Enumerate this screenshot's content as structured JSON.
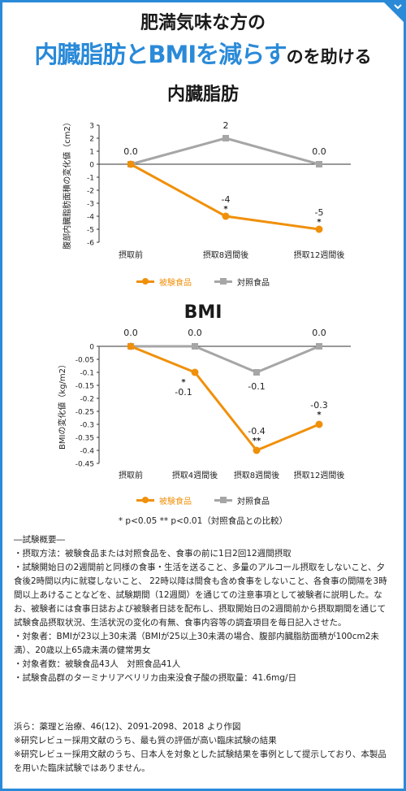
{
  "headline": {
    "line1": "肥満気味な方の",
    "line2_big": "内臓脂肪とBMIを減らす",
    "line2_small": "のを助ける"
  },
  "chart_data": [
    {
      "type": "line",
      "title": "内臓脂肪",
      "ylabel": "腹部内臓脂肪面積の変化値（cm2）",
      "xlabel": "",
      "categories": [
        "摂取前",
        "摂取8週間後",
        "摂取12週間後"
      ],
      "ylim": [
        -6,
        3
      ],
      "yticks": [
        3,
        2,
        1,
        0,
        -1,
        -2,
        -3,
        -4,
        -5,
        -6
      ],
      "series": [
        {
          "name": "被験食品",
          "color": "#f0900a",
          "values": [
            0.0,
            -4,
            -5
          ],
          "labels": [
            "0.0",
            "-4",
            "-5"
          ],
          "marks": [
            "",
            "*",
            "*"
          ]
        },
        {
          "name": "対照食品",
          "color": "#a6a6a6",
          "values": [
            0.0,
            2,
            0.0
          ],
          "labels": [
            "",
            "2",
            "0.0"
          ],
          "marks": [
            "",
            "",
            ""
          ]
        }
      ]
    },
    {
      "type": "line",
      "title": "BMI",
      "ylabel": "BMIの変化値（kg/m2）",
      "xlabel": "",
      "categories": [
        "摂取前",
        "摂取4週間後",
        "摂取8週間後",
        "摂取12週間後"
      ],
      "ylim": [
        -0.45,
        0
      ],
      "yticks": [
        0,
        -0.05,
        -0.1,
        -0.15,
        -0.2,
        -0.25,
        -0.3,
        -0.35,
        -0.4,
        -0.45
      ],
      "yticklabels": [
        "0",
        "-0.05",
        "-0.1",
        "-0.15",
        "-0.2",
        "-0.25",
        "-0.3",
        "-0.35",
        "-0.4",
        "-0.45"
      ],
      "series": [
        {
          "name": "被験食品",
          "color": "#f0900a",
          "values": [
            0.0,
            -0.1,
            -0.4,
            -0.3
          ],
          "labels": [
            "",
            "-0.1",
            "-0.4",
            "-0.3"
          ],
          "marks": [
            "",
            "*",
            "**",
            "*"
          ]
        },
        {
          "name": "対照食品",
          "color": "#a6a6a6",
          "values": [
            0.0,
            0.0,
            -0.1,
            0.0
          ],
          "labels": [
            "0.0",
            "0.0",
            "-0.1",
            "0.0"
          ],
          "marks": [
            "",
            "",
            "",
            ""
          ]
        }
      ],
      "top_labels": [
        "0.0",
        "0.0",
        "",
        "0.0"
      ]
    }
  ],
  "significance_note": "* p<0.05 ** p<0.01（対照食品との比較）",
  "notes": [
    "―試験概要―",
    "・摂取方法：被験食品または対照食品を、食事の前に1日2回12週間摂取",
    "・試験開始日の2週間前と同様の食事・生活を送ること、多量のアルコール摂取をしないこと、夕食後2時間以内に就寝しないこと、 22時以降は間食も含め食事をしないこと、各食事の間隔を3時間以上あけることなどを、試験期間（12週間）を通じての注意事項として被験者に説明した。なお、被験者には食事日誌および被験者日誌を配布し、摂取開始日の2週間前から摂取期間を通じて試験食品摂取状況、生活状況の変化の有無、食事内容等の調査項目を毎日記入させた。",
    "・対象者：BMIが23以上30未満（BMIが25以上30未満の場合、腹部内臓脂肪面積が100cm2未満）、20歳以上65歳未満の健常男女",
    "・対象者数：被験食品43人　対照食品41人",
    "・試験食品群のターミナリアベリリカ由来没食子酸の摂取量：41.6mg/日"
  ],
  "references": [
    "浜ら：薬理と治療、46(12)、2091-2098、2018 より作図",
    "※研究レビュー採用文献のうち、最も質の評価が高い臨床試験の結果",
    "※研究レビュー採用文献のうち、日本人を対象とした試験結果を事例として提示しており、本製品を用いた臨床試験ではありません。"
  ]
}
